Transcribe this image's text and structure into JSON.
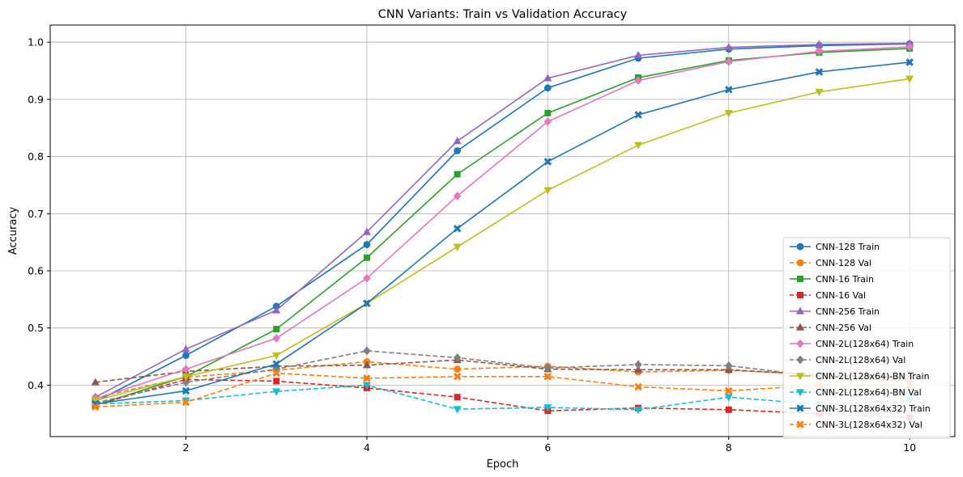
{
  "chart_data": {
    "type": "line",
    "title": "CNN Variants: Train vs Validation Accuracy",
    "xlabel": "Epoch",
    "ylabel": "Accuracy",
    "xlim": [
      0.5,
      10.5
    ],
    "ylim": [
      0.31,
      1.03
    ],
    "xticks": [
      2,
      4,
      6,
      8,
      10
    ],
    "yticks": [
      0.4,
      0.5,
      0.6,
      0.7,
      0.8,
      0.9,
      1.0
    ],
    "grid": true,
    "legend_position": "lower right",
    "x": [
      1,
      2,
      3,
      4,
      5,
      6,
      7,
      8,
      9,
      10
    ],
    "series": [
      {
        "name": "CNN-128 Train",
        "color": "#1f77b4",
        "dash": "solid",
        "marker": "circle",
        "values": [
          0.371,
          0.452,
          0.538,
          0.646,
          0.81,
          0.92,
          0.972,
          0.988,
          0.994,
          0.997
        ]
      },
      {
        "name": "CNN-128 Val",
        "color": "#ff7f0e",
        "dash": "dashed",
        "marker": "circle",
        "values": [
          0.378,
          0.414,
          0.426,
          0.441,
          0.428,
          0.433,
          0.423,
          0.426,
          0.418,
          0.415
        ]
      },
      {
        "name": "CNN-16 Train",
        "color": "#2ca02c",
        "dash": "solid",
        "marker": "square",
        "values": [
          0.365,
          0.415,
          0.498,
          0.623,
          0.769,
          0.876,
          0.938,
          0.968,
          0.982,
          0.989
        ]
      },
      {
        "name": "CNN-16 Val",
        "color": "#d62728",
        "dash": "dashed",
        "marker": "square",
        "values": [
          0.365,
          0.41,
          0.407,
          0.395,
          0.379,
          0.355,
          0.36,
          0.357,
          0.35,
          0.343
        ]
      },
      {
        "name": "CNN-256 Train",
        "color": "#9467bd",
        "dash": "solid",
        "marker": "triangle-up",
        "values": [
          0.379,
          0.463,
          0.531,
          0.668,
          0.827,
          0.937,
          0.977,
          0.991,
          0.996,
          0.998
        ]
      },
      {
        "name": "CNN-256 Val",
        "color": "#8c564b",
        "dash": "dashed",
        "marker": "triangle-up",
        "values": [
          0.405,
          0.424,
          0.433,
          0.435,
          0.444,
          0.428,
          0.427,
          0.427,
          0.418,
          0.412
        ]
      },
      {
        "name": "CNN-2L(128x64) Train",
        "color": "#e377c2",
        "dash": "solid",
        "marker": "diamond",
        "values": [
          0.376,
          0.428,
          0.482,
          0.587,
          0.731,
          0.861,
          0.933,
          0.966,
          0.984,
          0.992
        ]
      },
      {
        "name": "CNN-2L(128x64) Val",
        "color": "#7f7f7f",
        "dash": "dashed",
        "marker": "diamond",
        "values": [
          0.369,
          0.405,
          0.428,
          0.46,
          0.448,
          0.43,
          0.436,
          0.434,
          0.415,
          0.408
        ]
      },
      {
        "name": "CNN-2L(128x64)-BN Train",
        "color": "#bcbd22",
        "dash": "solid",
        "marker": "triangle-down",
        "values": [
          0.373,
          0.415,
          0.452,
          0.543,
          0.642,
          0.741,
          0.82,
          0.876,
          0.913,
          0.936
        ]
      },
      {
        "name": "CNN-2L(128x64)-BN Val",
        "color": "#17becf",
        "dash": "dashed",
        "marker": "triangle-down",
        "values": [
          0.367,
          0.373,
          0.389,
          0.4,
          0.358,
          0.361,
          0.357,
          0.379,
          0.366,
          0.373
        ]
      },
      {
        "name": "CNN-3L(128x64x32) Train",
        "color": "#1f77b4",
        "dash": "solid",
        "marker": "x-filled",
        "values": [
          0.367,
          0.39,
          0.437,
          0.543,
          0.674,
          0.791,
          0.873,
          0.917,
          0.948,
          0.965
        ]
      },
      {
        "name": "CNN-3L(128x64x32) Val",
        "color": "#ff7f0e",
        "dash": "dashed",
        "marker": "x-filled",
        "values": [
          0.362,
          0.37,
          0.421,
          0.412,
          0.415,
          0.415,
          0.397,
          0.39,
          0.4,
          0.4
        ]
      }
    ]
  }
}
